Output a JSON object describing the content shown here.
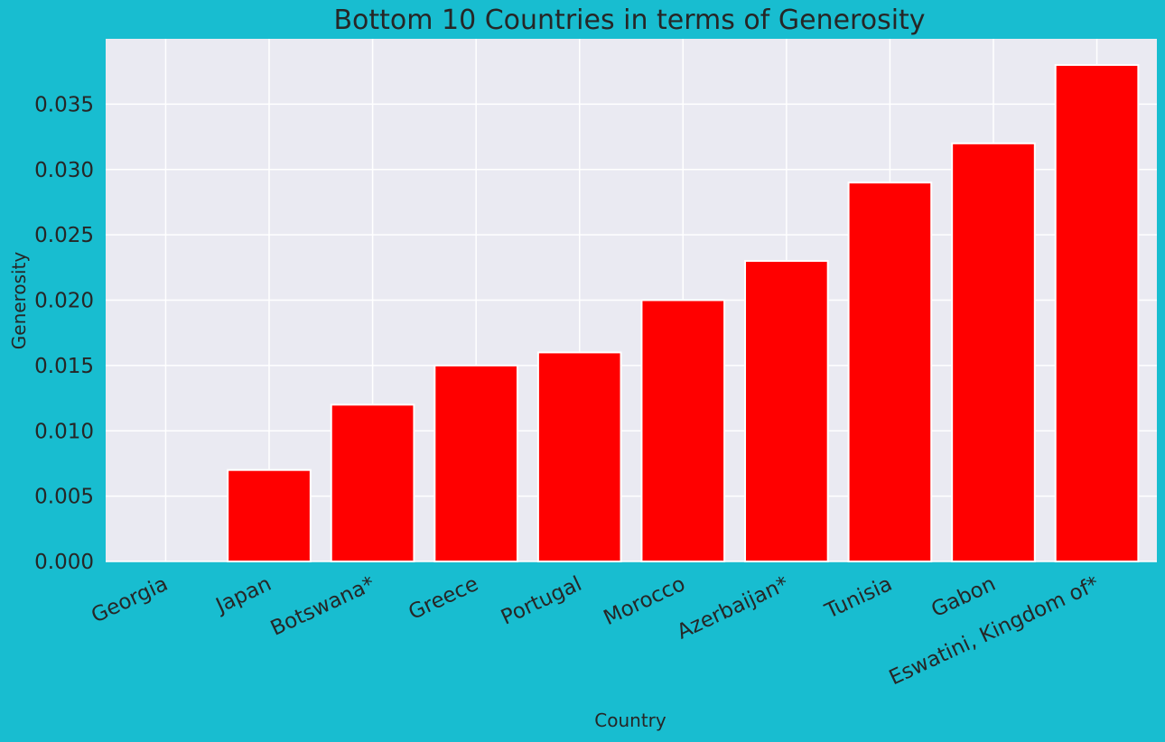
{
  "chart_data": {
    "type": "bar",
    "title": "Bottom 10 Countries in terms of Generosity",
    "xlabel": "Country",
    "ylabel": "Generosity",
    "categories": [
      "Georgia",
      "Japan",
      "Botswana*",
      "Greece",
      "Portugal",
      "Morocco",
      "Azerbaijan*",
      "Tunisia",
      "Gabon",
      "Eswatini, Kingdom of*"
    ],
    "values": [
      0.0,
      0.007,
      0.012,
      0.015,
      0.016,
      0.02,
      0.023,
      0.029,
      0.032,
      0.038
    ],
    "ylim": [
      0,
      0.04
    ],
    "yticks": [
      "0.000",
      "0.005",
      "0.010",
      "0.015",
      "0.020",
      "0.025",
      "0.030",
      "0.035"
    ],
    "grid": true,
    "colors": {
      "bar": "#ff0000",
      "plot_background": "#eaeaf2",
      "figure_background": "#18bdd0",
      "grid": "#ffffff",
      "text": "#262626"
    }
  }
}
